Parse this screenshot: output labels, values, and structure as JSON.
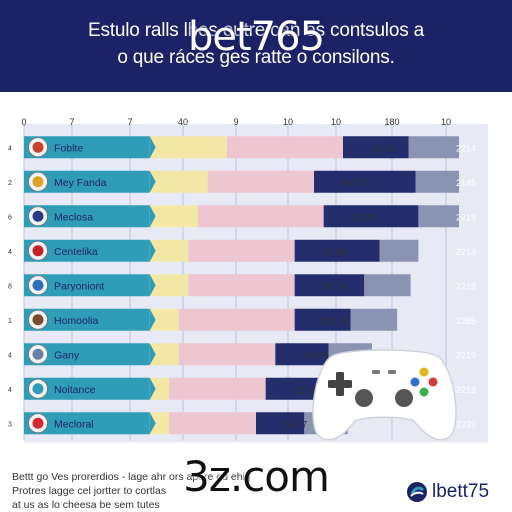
{
  "header": {
    "line1": "Estulo ralls lhes outre cán es contsulos a",
    "line2": "o que ráces ges ratte o consilons.",
    "watermark": "bet765"
  },
  "footer": {
    "line1": "Bettt go Ves prorerdios - lage ahr ors apore ed ehig",
    "line2": "Protres lagge cel jortter to cortlas",
    "line3": "at us as lo cheesa be sem tutes",
    "watermark": "3z.com",
    "brand": "lbett75"
  },
  "colors": {
    "header_bg": "#1b2266",
    "segment_teal": "#2f9db8",
    "segment_yellow": "#f3e7a6",
    "segment_pink": "#eec6d2",
    "segment_navy": "#252e6d",
    "segment_gray": "#8b93b2",
    "grid": "#b8c0dc"
  },
  "chart_data": {
    "type": "bar",
    "stacked": true,
    "orientation": "horizontal",
    "x_ticks": [
      "0",
      "7",
      "7",
      "40",
      "9",
      "10",
      "10",
      "180",
      "10"
    ],
    "row_ticks": [
      "4",
      "2",
      "6",
      "4",
      "8",
      "1",
      "4",
      "4",
      "3"
    ],
    "categories": [
      "Foblte",
      "Mey Fanda",
      "Meclosa",
      "Centelika",
      "Paryoniont",
      "Homoolia",
      "Gany",
      "Noitance",
      "Mecloral"
    ],
    "icons": [
      "character-avatar-icon",
      "colorful-badge-icon",
      "team-crest-icon",
      "flag-icon",
      "team-crest-icon",
      "character-avatar-icon",
      "character-avatar-icon",
      "character-avatar-icon",
      "flag-icon"
    ],
    "series": [
      {
        "values": [
          13,
          13,
          13,
          13,
          13,
          13,
          13,
          13,
          13
        ]
      },
      {
        "values": [
          8,
          6,
          5,
          4,
          4,
          3,
          3,
          2,
          2
        ]
      },
      {
        "values": [
          12,
          11,
          13,
          11,
          11,
          12,
          10,
          10,
          9
        ]
      },
      {
        "values": [
          6.8,
          10.5,
          9.8,
          8.8,
          7.2,
          5.8,
          5.5,
          5.5,
          5.0
        ]
      },
      {
        "values": [
          5.2,
          4.5,
          4.2,
          4.0,
          4.8,
          4.8,
          4.5,
          4.5,
          4.5
        ]
      }
    ],
    "value_labels": [
      "29.16",
      "59 f72",
      "110 f6",
      "$7.08",
      "58.74",
      "221.02",
      "26.48",
      "22.74",
      "53.77"
    ],
    "right_labels": [
      "2214",
      "2145",
      "2219",
      "2218",
      "2219",
      "2285",
      "2219",
      "2219",
      "2239"
    ],
    "xlim": [
      0,
      48
    ],
    "grid": true
  }
}
